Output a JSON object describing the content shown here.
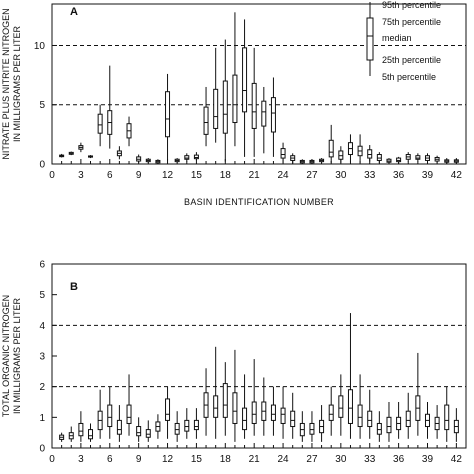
{
  "chart_data": [
    {
      "type": "boxplot",
      "panel_label": "A",
      "ylabel_lines": [
        "NITRATE PLUS NITRITE NITROGEN",
        "IN MILLIGRAMS PER LITER"
      ],
      "xlabel": "BASIN IDENTIFICATION NUMBER",
      "xlim": [
        0,
        43
      ],
      "ylim": [
        0,
        13.5
      ],
      "xticks": [
        0,
        3,
        6,
        9,
        12,
        15,
        18,
        21,
        24,
        27,
        30,
        33,
        36,
        39,
        42
      ],
      "yticks": [
        0,
        5,
        10
      ],
      "reference_lines": [
        5,
        10
      ],
      "legend": {
        "labels": [
          "95th percentile",
          "75th percentile",
          "median",
          "25th percentile",
          "5th percentile"
        ]
      },
      "boxes": [
        {
          "x": 1,
          "p5": 0.55,
          "p25": 0.62,
          "median": 0.68,
          "p75": 0.75,
          "p95": 0.85
        },
        {
          "x": 2,
          "p5": 0.75,
          "p25": 0.82,
          "median": 0.9,
          "p75": 0.98,
          "p95": 1.05
        },
        {
          "x": 3,
          "p5": 1.0,
          "p25": 1.25,
          "median": 1.4,
          "p75": 1.55,
          "p95": 1.8
        },
        {
          "x": 4,
          "p5": 0.5,
          "p25": 0.58,
          "median": 0.62,
          "p75": 0.68,
          "p95": 0.75
        },
        {
          "x": 5,
          "p5": 1.5,
          "p25": 2.6,
          "median": 3.3,
          "p75": 4.2,
          "p95": 5.0
        },
        {
          "x": 6,
          "p5": 1.3,
          "p25": 2.5,
          "median": 3.5,
          "p75": 4.5,
          "p95": 8.3
        },
        {
          "x": 7,
          "p5": 0.4,
          "p25": 0.7,
          "median": 0.9,
          "p75": 1.1,
          "p95": 1.5
        },
        {
          "x": 8,
          "p5": 1.5,
          "p25": 2.2,
          "median": 2.8,
          "p75": 3.4,
          "p95": 4.0
        },
        {
          "x": 9,
          "p5": 0.1,
          "p25": 0.25,
          "median": 0.4,
          "p75": 0.6,
          "p95": 0.8
        },
        {
          "x": 10,
          "p5": 0.1,
          "p25": 0.2,
          "median": 0.3,
          "p75": 0.4,
          "p95": 0.5
        },
        {
          "x": 11,
          "p5": 0.05,
          "p25": 0.1,
          "median": 0.2,
          "p75": 0.3,
          "p95": 0.4
        },
        {
          "x": 12,
          "p5": 0.3,
          "p25": 2.3,
          "median": 3.8,
          "p75": 6.1,
          "p95": 7.6
        },
        {
          "x": 13,
          "p5": 0.1,
          "p25": 0.2,
          "median": 0.3,
          "p75": 0.4,
          "p95": 0.5
        },
        {
          "x": 14,
          "p5": 0.2,
          "p25": 0.4,
          "median": 0.5,
          "p75": 0.7,
          "p95": 0.9
        },
        {
          "x": 15,
          "p5": 0.3,
          "p25": 0.45,
          "median": 0.55,
          "p75": 0.75,
          "p95": 1.0
        },
        {
          "x": 16,
          "p5": 1.5,
          "p25": 2.5,
          "median": 3.5,
          "p75": 4.8,
          "p95": 6.5
        },
        {
          "x": 17,
          "p5": 1.8,
          "p25": 3.0,
          "median": 4.0,
          "p75": 6.3,
          "p95": 9.8
        },
        {
          "x": 18,
          "p5": 0.2,
          "p25": 2.6,
          "median": 4.2,
          "p75": 7.0,
          "p95": 10.5
        },
        {
          "x": 19,
          "p5": 1.5,
          "p25": 3.5,
          "median": 5.0,
          "p75": 7.5,
          "p95": 12.8
        },
        {
          "x": 20,
          "p5": 0.6,
          "p25": 4.4,
          "median": 6.2,
          "p75": 9.8,
          "p95": 12.2
        },
        {
          "x": 21,
          "p5": 0.6,
          "p25": 3.0,
          "median": 4.4,
          "p75": 6.8,
          "p95": 9.8
        },
        {
          "x": 22,
          "p5": 0.9,
          "p25": 3.2,
          "median": 4.4,
          "p75": 5.3,
          "p95": 6.5
        },
        {
          "x": 23,
          "p5": 0.6,
          "p25": 2.7,
          "median": 4.3,
          "p75": 5.6,
          "p95": 7.3
        },
        {
          "x": 24,
          "p5": 0.1,
          "p25": 0.5,
          "median": 0.8,
          "p75": 1.3,
          "p95": 1.8
        },
        {
          "x": 25,
          "p5": 0.05,
          "p25": 0.3,
          "median": 0.5,
          "p75": 0.7,
          "p95": 0.9
        },
        {
          "x": 26,
          "p5": 0.05,
          "p25": 0.1,
          "median": 0.2,
          "p75": 0.3,
          "p95": 0.4
        },
        {
          "x": 27,
          "p5": 0.05,
          "p25": 0.1,
          "median": 0.2,
          "p75": 0.3,
          "p95": 0.4
        },
        {
          "x": 28,
          "p5": 0.1,
          "p25": 0.2,
          "median": 0.3,
          "p75": 0.4,
          "p95": 0.5
        },
        {
          "x": 29,
          "p5": 0.1,
          "p25": 0.6,
          "median": 1.0,
          "p75": 2.0,
          "p95": 3.3
        },
        {
          "x": 30,
          "p5": 0.1,
          "p25": 0.4,
          "median": 0.7,
          "p75": 1.1,
          "p95": 1.5
        },
        {
          "x": 31,
          "p5": 0.2,
          "p25": 0.8,
          "median": 1.3,
          "p75": 1.8,
          "p95": 2.5
        },
        {
          "x": 32,
          "p5": 0.1,
          "p25": 0.7,
          "median": 1.1,
          "p75": 1.5,
          "p95": 2.5
        },
        {
          "x": 33,
          "p5": 0.2,
          "p25": 0.5,
          "median": 0.8,
          "p75": 1.2,
          "p95": 1.6
        },
        {
          "x": 34,
          "p5": 0.1,
          "p25": 0.3,
          "median": 0.5,
          "p75": 0.8,
          "p95": 1.0
        },
        {
          "x": 35,
          "p5": 0.05,
          "p25": 0.15,
          "median": 0.25,
          "p75": 0.4,
          "p95": 0.5
        },
        {
          "x": 36,
          "p5": 0.05,
          "p25": 0.2,
          "median": 0.3,
          "p75": 0.5,
          "p95": 0.6
        },
        {
          "x": 37,
          "p5": 0.2,
          "p25": 0.4,
          "median": 0.6,
          "p75": 0.8,
          "p95": 1.0
        },
        {
          "x": 38,
          "p5": 0.2,
          "p25": 0.4,
          "median": 0.5,
          "p75": 0.7,
          "p95": 0.9
        },
        {
          "x": 39,
          "p5": 0.1,
          "p25": 0.3,
          "median": 0.5,
          "p75": 0.7,
          "p95": 0.9
        },
        {
          "x": 40,
          "p5": 0.1,
          "p25": 0.25,
          "median": 0.4,
          "p75": 0.55,
          "p95": 0.7
        },
        {
          "x": 41,
          "p5": 0.05,
          "p25": 0.15,
          "median": 0.25,
          "p75": 0.35,
          "p95": 0.5
        },
        {
          "x": 42,
          "p5": 0.05,
          "p25": 0.15,
          "median": 0.25,
          "p75": 0.35,
          "p95": 0.5
        }
      ]
    },
    {
      "type": "boxplot",
      "panel_label": "B",
      "ylabel_lines": [
        "TOTAL ORGANIC NITROGEN",
        "IN MILLIGRAMS PER LITER"
      ],
      "xlim": [
        0,
        43
      ],
      "ylim": [
        0,
        6
      ],
      "xticks": [
        0,
        3,
        6,
        9,
        12,
        15,
        18,
        21,
        24,
        27,
        30,
        33,
        36,
        39,
        42
      ],
      "yticks": [
        0,
        1,
        2,
        3,
        4,
        5,
        6
      ],
      "reference_lines": [
        2,
        4
      ],
      "boxes": [
        {
          "x": 1,
          "p5": 0.2,
          "p25": 0.28,
          "median": 0.35,
          "p75": 0.42,
          "p95": 0.5
        },
        {
          "x": 2,
          "p5": 0.2,
          "p25": 0.3,
          "median": 0.4,
          "p75": 0.5,
          "p95": 0.7
        },
        {
          "x": 3,
          "p5": 0.2,
          "p25": 0.4,
          "median": 0.55,
          "p75": 0.8,
          "p95": 1.2
        },
        {
          "x": 4,
          "p5": 0.2,
          "p25": 0.3,
          "median": 0.4,
          "p75": 0.6,
          "p95": 0.8
        },
        {
          "x": 5,
          "p5": 0.3,
          "p25": 0.6,
          "median": 0.9,
          "p75": 1.2,
          "p95": 1.9
        },
        {
          "x": 6,
          "p5": 0.3,
          "p25": 0.7,
          "median": 1.0,
          "p75": 1.4,
          "p95": 2.0
        },
        {
          "x": 7,
          "p5": 0.2,
          "p25": 0.45,
          "median": 0.6,
          "p75": 0.9,
          "p95": 1.4
        },
        {
          "x": 8,
          "p5": 0.4,
          "p25": 0.8,
          "median": 1.0,
          "p75": 1.4,
          "p95": 2.4
        },
        {
          "x": 9,
          "p5": 0.2,
          "p25": 0.4,
          "median": 0.5,
          "p75": 0.7,
          "p95": 1.0
        },
        {
          "x": 10,
          "p5": 0.2,
          "p25": 0.35,
          "median": 0.45,
          "p75": 0.6,
          "p95": 0.9
        },
        {
          "x": 11,
          "p5": 0.3,
          "p25": 0.55,
          "median": 0.7,
          "p75": 0.85,
          "p95": 1.1
        },
        {
          "x": 12,
          "p5": 0.3,
          "p25": 0.9,
          "median": 1.1,
          "p75": 1.6,
          "p95": 2.0
        },
        {
          "x": 13,
          "p5": 0.2,
          "p25": 0.45,
          "median": 0.6,
          "p75": 0.8,
          "p95": 1.2
        },
        {
          "x": 14,
          "p5": 0.3,
          "p25": 0.55,
          "median": 0.7,
          "p75": 0.9,
          "p95": 1.3
        },
        {
          "x": 15,
          "p5": 0.3,
          "p25": 0.6,
          "median": 0.7,
          "p75": 0.9,
          "p95": 1.3
        },
        {
          "x": 16,
          "p5": 0.4,
          "p25": 1.0,
          "median": 1.4,
          "p75": 1.8,
          "p95": 2.6
        },
        {
          "x": 17,
          "p5": 0.3,
          "p25": 1.0,
          "median": 1.3,
          "p75": 1.7,
          "p95": 3.3
        },
        {
          "x": 18,
          "p5": 0.4,
          "p25": 1.0,
          "median": 1.4,
          "p75": 2.1,
          "p95": 2.8
        },
        {
          "x": 19,
          "p5": 0.2,
          "p25": 0.8,
          "median": 1.2,
          "p75": 1.8,
          "p95": 3.2
        },
        {
          "x": 20,
          "p5": 0.3,
          "p25": 0.6,
          "median": 0.9,
          "p75": 1.3,
          "p95": 2.4
        },
        {
          "x": 21,
          "p5": 0.4,
          "p25": 0.8,
          "median": 1.1,
          "p75": 1.5,
          "p95": 2.9
        },
        {
          "x": 22,
          "p5": 0.4,
          "p25": 0.9,
          "median": 1.2,
          "p75": 1.5,
          "p95": 2.3
        },
        {
          "x": 23,
          "p5": 0.4,
          "p25": 0.9,
          "median": 1.1,
          "p75": 1.4,
          "p95": 2.0
        },
        {
          "x": 24,
          "p5": 0.3,
          "p25": 0.8,
          "median": 1.1,
          "p75": 1.3,
          "p95": 2.0
        },
        {
          "x": 25,
          "p5": 0.3,
          "p25": 0.7,
          "median": 0.9,
          "p75": 1.2,
          "p95": 1.8
        },
        {
          "x": 26,
          "p5": 0.2,
          "p25": 0.4,
          "median": 0.6,
          "p75": 0.8,
          "p95": 1.2
        },
        {
          "x": 27,
          "p5": 0.2,
          "p25": 0.45,
          "median": 0.6,
          "p75": 0.8,
          "p95": 1.2
        },
        {
          "x": 28,
          "p5": 0.2,
          "p25": 0.5,
          "median": 0.7,
          "p75": 0.9,
          "p95": 1.4
        },
        {
          "x": 29,
          "p5": 0.4,
          "p25": 0.9,
          "median": 1.1,
          "p75": 1.4,
          "p95": 2.0
        },
        {
          "x": 30,
          "p5": 0.4,
          "p25": 1.0,
          "median": 1.3,
          "p75": 1.7,
          "p95": 2.4
        },
        {
          "x": 31,
          "p5": 0.3,
          "p25": 0.8,
          "median": 1.3,
          "p75": 1.9,
          "p95": 4.4
        },
        {
          "x": 32,
          "p5": 0.3,
          "p25": 0.7,
          "median": 1.0,
          "p75": 1.4,
          "p95": 2.4
        },
        {
          "x": 33,
          "p5": 0.3,
          "p25": 0.7,
          "median": 0.9,
          "p75": 1.2,
          "p95": 1.9
        },
        {
          "x": 34,
          "p5": 0.2,
          "p25": 0.45,
          "median": 0.6,
          "p75": 0.8,
          "p95": 1.2
        },
        {
          "x": 35,
          "p5": 0.2,
          "p25": 0.5,
          "median": 0.7,
          "p75": 1.0,
          "p95": 1.5
        },
        {
          "x": 36,
          "p5": 0.3,
          "p25": 0.6,
          "median": 0.8,
          "p75": 1.0,
          "p95": 1.5
        },
        {
          "x": 37,
          "p5": 0.3,
          "p25": 0.7,
          "median": 0.9,
          "p75": 1.2,
          "p95": 1.8
        },
        {
          "x": 38,
          "p5": 0.4,
          "p25": 0.9,
          "median": 1.3,
          "p75": 1.7,
          "p95": 3.1
        },
        {
          "x": 39,
          "p5": 0.3,
          "p25": 0.7,
          "median": 0.9,
          "p75": 1.1,
          "p95": 1.5
        },
        {
          "x": 40,
          "p5": 0.3,
          "p25": 0.6,
          "median": 0.8,
          "p75": 1.0,
          "p95": 1.4
        },
        {
          "x": 41,
          "p5": 0.2,
          "p25": 0.6,
          "median": 0.9,
          "p75": 1.4,
          "p95": 2.0
        },
        {
          "x": 42,
          "p5": 0.2,
          "p25": 0.5,
          "median": 0.7,
          "p75": 0.9,
          "p95": 1.3
        }
      ]
    }
  ]
}
